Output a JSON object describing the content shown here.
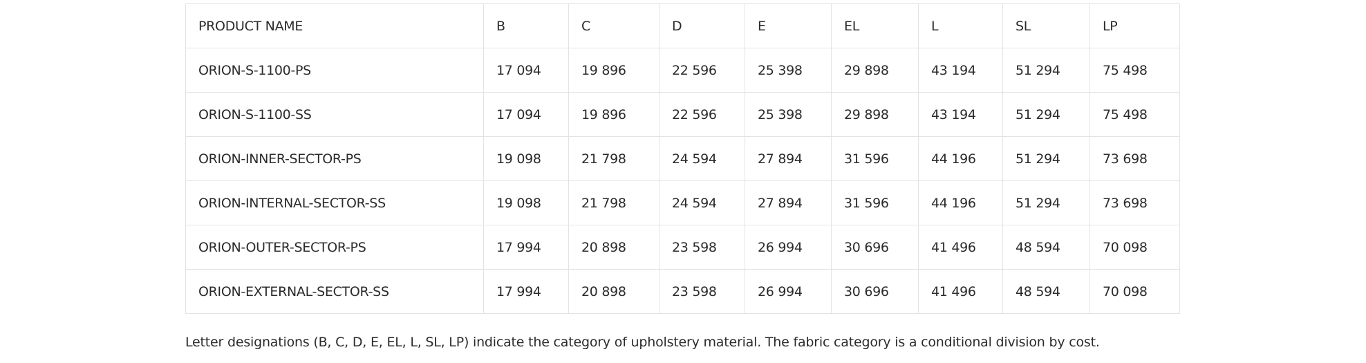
{
  "table": {
    "header": [
      "PRODUCT NAME",
      "B",
      "C",
      "D",
      "E",
      "EL",
      "L",
      "SL",
      "LP"
    ],
    "rows": [
      [
        "ORION-S-1100-PS",
        "17 094",
        "19 896",
        "22 596",
        "25 398",
        "29 898",
        "43 194",
        "51 294",
        "75 498"
      ],
      [
        "ORION-S-1100-SS",
        "17 094",
        "19 896",
        "22 596",
        "25 398",
        "29 898",
        "43 194",
        "51 294",
        "75 498"
      ],
      [
        "ORION-INNER-SECTOR-PS",
        "19 098",
        "21 798",
        "24 594",
        "27 894",
        "31 596",
        "44 196",
        "51 294",
        "73 698"
      ],
      [
        "ORION-INTERNAL-SECTOR-SS",
        "19 098",
        "21 798",
        "24 594",
        "27 894",
        "31 596",
        "44 196",
        "51 294",
        "73 698"
      ],
      [
        "ORION-OUTER-SECTOR-PS",
        "17 994",
        "20 898",
        "23 598",
        "26 994",
        "30 696",
        "41 496",
        "48 594",
        "70 098"
      ],
      [
        "ORION-EXTERNAL-SECTOR-SS",
        "17 994",
        "20 898",
        "23 598",
        "26 994",
        "30 696",
        "41 496",
        "48 594",
        "70 098"
      ]
    ]
  },
  "note": "Letter designations (B, C, D, E, EL, L, SL, LP) indicate the category of upholstery material. The fabric category is a conditional division by cost."
}
